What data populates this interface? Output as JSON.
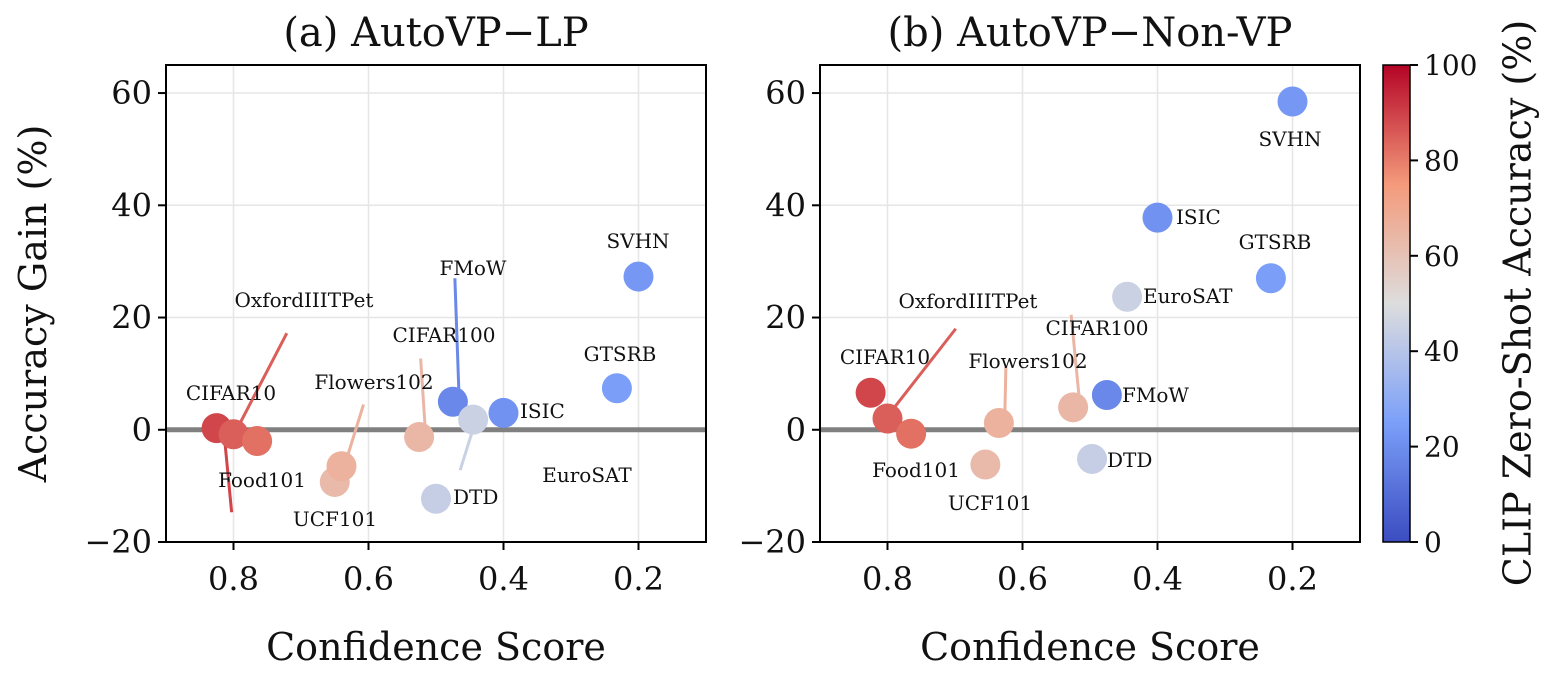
{
  "chart_data": [
    {
      "type": "scatter",
      "title": "(a) AutoVP−LP",
      "xlabel": "Confidence Score",
      "ylabel": "Accuracy Gain (%)",
      "xlim": [
        0.9,
        0.1
      ],
      "ylim": [
        -20,
        65
      ],
      "xticks": [
        0.8,
        0.6,
        0.4,
        0.2
      ],
      "xtick_labels": [
        "0.8",
        "0.6",
        "0.4",
        "0.2"
      ],
      "yticks": [
        -20,
        0,
        20,
        40,
        60
      ],
      "ytick_labels": [
        "−20",
        "0",
        "20",
        "40",
        "60"
      ],
      "grid": true,
      "points": [
        {
          "name": "CIFAR10",
          "x": 0.825,
          "y": 0.3,
          "clip_acc": 89,
          "label_dx": 15,
          "label_dy": -15,
          "leader": true
        },
        {
          "name": "OxfordIIITPet",
          "x": 0.8,
          "y": -0.8,
          "clip_acc": 85,
          "label_dx": 65,
          "label_dy": 18,
          "leader": true
        },
        {
          "name": "Food101",
          "x": 0.765,
          "y": -2.0,
          "clip_acc": 82,
          "label_dx": 0,
          "label_dy": -10.5,
          "leader": false
        },
        {
          "name": "UCF101",
          "x": 0.65,
          "y": -9.3,
          "clip_acc": 63,
          "label_dx": 0,
          "label_dy": -6.5,
          "leader": false
        },
        {
          "name": "Flowers102",
          "x": 0.64,
          "y": -6.5,
          "clip_acc": 66,
          "label_dx": 22,
          "label_dy": 11,
          "leader": true
        },
        {
          "name": "CIFAR100",
          "x": 0.525,
          "y": -1.3,
          "clip_acc": 64,
          "label_dx": 1.5,
          "label_dy": 14,
          "leader": true
        },
        {
          "name": "FMoW",
          "x": 0.475,
          "y": 5.0,
          "clip_acc": 18,
          "label_dx": 2,
          "label_dy": 22,
          "leader": true
        },
        {
          "name": "EuroSAT",
          "x": 0.445,
          "y": 1.8,
          "clip_acc": 45,
          "label_dx": -13,
          "label_dy": -9,
          "leader": true
        },
        {
          "name": "ISIC",
          "x": 0.4,
          "y": 3.0,
          "clip_acc": 21,
          "label_dx": -4,
          "label_dy": 0,
          "leader": false
        },
        {
          "name": "DTD",
          "x": 0.5,
          "y": -12.3,
          "clip_acc": 44,
          "label_dx": -4,
          "label_dy": 0,
          "leader": false
        },
        {
          "name": "GTSRB",
          "x": 0.232,
          "y": 7.4,
          "clip_acc": 25,
          "label_dx": 1.5,
          "label_dy": 6.5,
          "leader": false
        },
        {
          "name": "SVHN",
          "x": 0.2,
          "y": 27.3,
          "clip_acc": 23,
          "label_dx": 3,
          "label_dy": 6.5,
          "leader": false
        }
      ]
    },
    {
      "type": "scatter",
      "title": "(b) AutoVP−Non-VP",
      "xlabel": "Confidence Score",
      "ylabel": "",
      "xlim": [
        0.9,
        0.1
      ],
      "ylim": [
        -20,
        65
      ],
      "xticks": [
        0.8,
        0.6,
        0.4,
        0.2
      ],
      "xtick_labels": [
        "0.8",
        "0.6",
        "0.4",
        "0.2"
      ],
      "yticks": [
        -20,
        0,
        20,
        40,
        60
      ],
      "ytick_labels": [
        "−20",
        "0",
        "20",
        "40",
        "60"
      ],
      "grid": true,
      "points": [
        {
          "name": "CIFAR10",
          "x": 0.825,
          "y": 6.6,
          "clip_acc": 89,
          "label_dx": -1,
          "label_dy": 6.5,
          "leader": false
        },
        {
          "name": "OxfordIIITPet",
          "x": 0.8,
          "y": 2.0,
          "clip_acc": 85,
          "label_dx": 105,
          "label_dy": 16,
          "leader": true
        },
        {
          "name": "Food101",
          "x": 0.765,
          "y": -0.7,
          "clip_acc": 82,
          "label_dx": -9,
          "label_dy": -7,
          "leader": false
        },
        {
          "name": "UCF101",
          "x": 0.655,
          "y": -6.2,
          "clip_acc": 63,
          "label_dx": -8,
          "label_dy": -7,
          "leader": false
        },
        {
          "name": "Flowers102",
          "x": 0.635,
          "y": 1.2,
          "clip_acc": 66,
          "label_dx": 7,
          "label_dy": 10,
          "leader": true
        },
        {
          "name": "CIFAR100",
          "x": 0.525,
          "y": 4.0,
          "clip_acc": 64,
          "label_dx": -2,
          "label_dy": 16.5,
          "leader": true
        },
        {
          "name": "FMoW",
          "x": 0.475,
          "y": 6.2,
          "clip_acc": 18,
          "label_dx": -2,
          "label_dy": 0,
          "leader": false
        },
        {
          "name": "EuroSAT",
          "x": 0.445,
          "y": 23.7,
          "clip_acc": 45,
          "label_dx": -2,
          "label_dy": 0,
          "leader": false
        },
        {
          "name": "ISIC",
          "x": 0.4,
          "y": 37.8,
          "clip_acc": 21,
          "label_dx": -2,
          "label_dy": 0,
          "leader": false
        },
        {
          "name": "DTD",
          "x": 0.497,
          "y": -5.2,
          "clip_acc": 44,
          "label_dx": -2,
          "label_dy": 0,
          "leader": false
        },
        {
          "name": "GTSRB",
          "x": 0.232,
          "y": 27.0,
          "clip_acc": 25,
          "label_dx": 2,
          "label_dy": 6.5,
          "leader": false
        },
        {
          "name": "SVHN",
          "x": 0.2,
          "y": 58.5,
          "clip_acc": 23,
          "label_dx": 2,
          "label_dy": -6.5,
          "leader": false
        }
      ]
    }
  ],
  "colorbar": {
    "label": "CLIP Zero-Shot Accuracy (%)",
    "colormap": "coolwarm",
    "range": [
      0,
      100
    ],
    "ticks": [
      0,
      20,
      40,
      60,
      80,
      100
    ],
    "tick_labels": [
      "0",
      "20",
      "40",
      "60",
      "80",
      "100"
    ]
  },
  "zero_line_color": "#808080"
}
